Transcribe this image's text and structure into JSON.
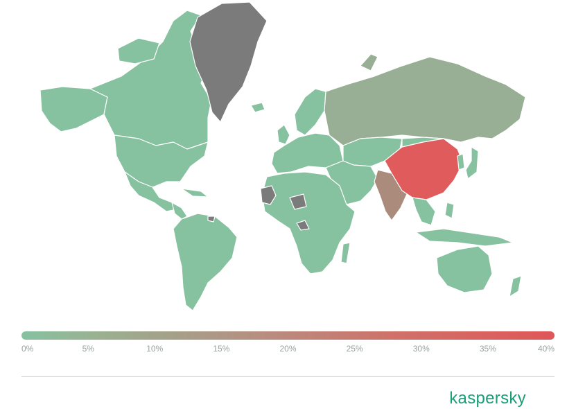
{
  "map": {
    "legend_ticks": [
      "0%",
      "5%",
      "10%",
      "15%",
      "20%",
      "25%",
      "30%",
      "35%",
      "40%"
    ],
    "legend_range_percent": [
      0,
      40
    ],
    "colors": {
      "low": "#86c1a0",
      "mid": "#a2a38a",
      "high": "#df5759",
      "no_data": "#7b7b7b",
      "russia": "#98af95",
      "india": "#ab8b7c",
      "china": "#e05c5c"
    },
    "highlighted_regions": [
      {
        "name": "China",
        "level": "~37%"
      },
      {
        "name": "India",
        "level": "~20%"
      },
      {
        "name": "Russia",
        "level": "~8%"
      },
      {
        "name": "Greenland",
        "level": "no data"
      }
    ]
  },
  "brand": {
    "logo_text": "kaspersky"
  }
}
